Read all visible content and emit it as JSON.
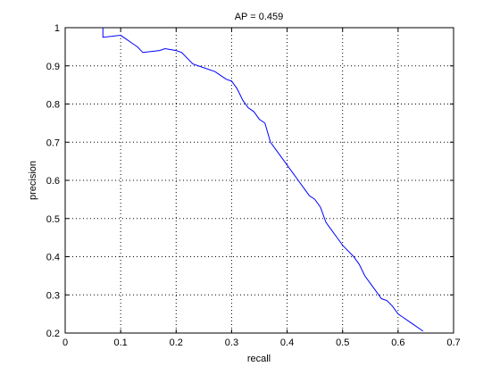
{
  "chart_data": {
    "type": "line",
    "title": "AP = 0.459",
    "x_label": "recall",
    "y_label": "precision",
    "xlim": [
      0,
      0.7
    ],
    "ylim": [
      0.2,
      1
    ],
    "xticks": [
      0,
      0.1,
      0.2,
      0.3,
      0.4,
      0.5,
      0.6,
      0.7
    ],
    "yticks": [
      0.2,
      0.3,
      0.4,
      0.5,
      0.6,
      0.7,
      0.8,
      0.9,
      1
    ],
    "grid": true,
    "series": [
      {
        "color": "#0000ff",
        "x": [
          0.068,
          0.068,
          0.1,
          0.11,
          0.12,
          0.13,
          0.14,
          0.17,
          0.18,
          0.2,
          0.21,
          0.22,
          0.23,
          0.24,
          0.25,
          0.27,
          0.28,
          0.29,
          0.3,
          0.31,
          0.32,
          0.33,
          0.34,
          0.35,
          0.36,
          0.37,
          0.38,
          0.39,
          0.4,
          0.41,
          0.42,
          0.43,
          0.44,
          0.45,
          0.46,
          0.47,
          0.48,
          0.49,
          0.5,
          0.51,
          0.52,
          0.53,
          0.54,
          0.55,
          0.56,
          0.57,
          0.58,
          0.59,
          0.6,
          0.61,
          0.62,
          0.63,
          0.64,
          0.645
        ],
        "values": [
          1.0,
          0.975,
          0.98,
          0.97,
          0.96,
          0.95,
          0.935,
          0.94,
          0.945,
          0.94,
          0.935,
          0.92,
          0.905,
          0.9,
          0.895,
          0.885,
          0.875,
          0.865,
          0.86,
          0.84,
          0.81,
          0.79,
          0.78,
          0.76,
          0.75,
          0.7,
          0.68,
          0.66,
          0.64,
          0.62,
          0.6,
          0.58,
          0.56,
          0.55,
          0.53,
          0.49,
          0.47,
          0.45,
          0.43,
          0.415,
          0.4,
          0.38,
          0.35,
          0.33,
          0.31,
          0.29,
          0.285,
          0.27,
          0.25,
          0.24,
          0.23,
          0.22,
          0.21,
          0.205
        ]
      }
    ]
  }
}
